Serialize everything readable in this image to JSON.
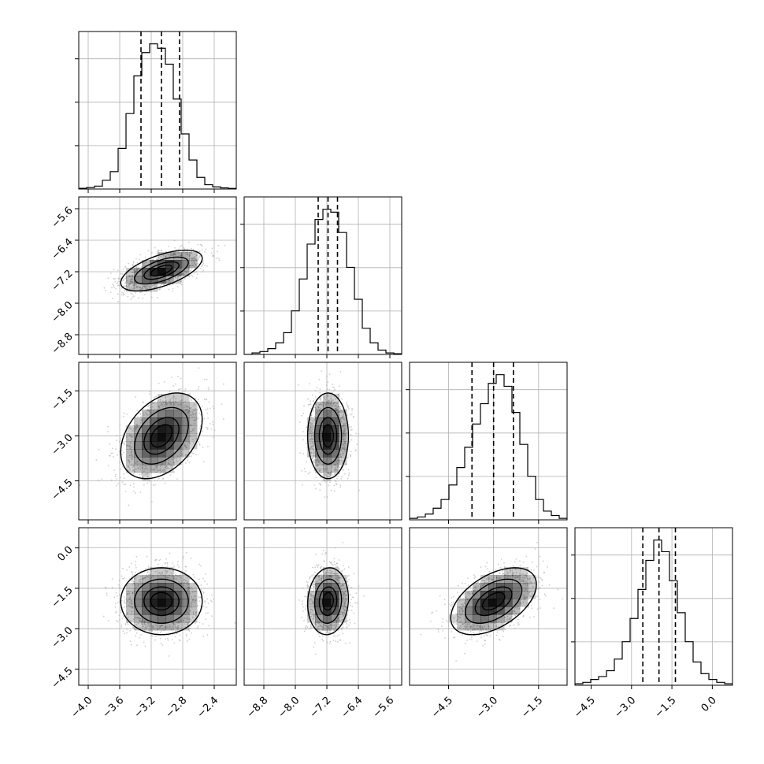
{
  "chart_data": {
    "type": "corner",
    "parameters": 4,
    "axis_ticks": [
      {
        "ticks": [
          -4.0,
          -3.6,
          -3.2,
          -2.8,
          -2.4
        ],
        "labels": [
          "−4.0",
          "−3.6",
          "−3.2",
          "−2.8",
          "−2.4"
        ],
        "range": [
          -4.12,
          -2.12
        ]
      },
      {
        "ticks": [
          -8.8,
          -8.0,
          -7.2,
          -6.4,
          -5.6
        ],
        "labels": [
          "−8.8",
          "−8.0",
          "−7.2",
          "−6.4",
          "−5.6"
        ],
        "range": [
          -9.3,
          -5.3
        ]
      },
      {
        "ticks": [
          -4.5,
          -3.0,
          -1.5
        ],
        "labels": [
          "−4.5",
          "−3.0",
          "−1.5"
        ],
        "range": [
          -5.8,
          -0.55
        ]
      },
      {
        "ticks": [
          -4.5,
          -3.0,
          -1.5,
          0.0
        ],
        "labels": [
          "−4.5",
          "−3.0",
          "−1.5",
          "0.0"
        ],
        "range": [
          -5.1,
          0.75
        ]
      }
    ],
    "marginals": [
      {
        "param": 0,
        "median": -3.07,
        "q16": -3.33,
        "q84": -2.84,
        "peak": 1.0,
        "edges": [
          -4.12,
          -4.02,
          -3.92,
          -3.82,
          -3.72,
          -3.62,
          -3.52,
          -3.42,
          -3.32,
          -3.22,
          -3.12,
          -3.02,
          -2.92,
          -2.82,
          -2.72,
          -2.62,
          -2.52,
          -2.42,
          -2.32,
          -2.22,
          -2.12
        ],
        "values": [
          0.005,
          0.01,
          0.02,
          0.06,
          0.12,
          0.28,
          0.52,
          0.78,
          0.94,
          1.0,
          0.97,
          0.86,
          0.62,
          0.38,
          0.2,
          0.08,
          0.03,
          0.015,
          0.008,
          0.004
        ]
      },
      {
        "param": 1,
        "median": -7.17,
        "q16": -7.42,
        "q84": -6.93,
        "peak": 1.0,
        "edges": [
          -9.3,
          -9.1,
          -8.9,
          -8.7,
          -8.5,
          -8.3,
          -8.1,
          -7.9,
          -7.7,
          -7.5,
          -7.3,
          -7.1,
          -6.9,
          -6.7,
          -6.5,
          -6.3,
          -6.1,
          -5.9,
          -5.7,
          -5.5,
          -5.3
        ],
        "values": [
          0.0,
          0.01,
          0.02,
          0.04,
          0.08,
          0.15,
          0.3,
          0.52,
          0.76,
          0.93,
          1.0,
          0.98,
          0.84,
          0.6,
          0.38,
          0.18,
          0.08,
          0.03,
          0.01,
          0.005
        ]
      },
      {
        "param": 2,
        "median": -3.0,
        "q16": -3.72,
        "q84": -2.34,
        "peak": 1.0,
        "edges": [
          -5.8,
          -5.5375,
          -5.275,
          -5.0125,
          -4.75,
          -4.4875,
          -4.225,
          -3.9625,
          -3.7,
          -3.4375,
          -3.175,
          -2.9125,
          -2.65,
          -2.3875,
          -2.125,
          -1.8625,
          -1.6,
          -1.3375,
          -1.075,
          -0.8125,
          -0.55
        ],
        "values": [
          0.01,
          0.02,
          0.04,
          0.08,
          0.14,
          0.24,
          0.36,
          0.5,
          0.66,
          0.8,
          0.94,
          1.0,
          0.92,
          0.74,
          0.52,
          0.3,
          0.14,
          0.06,
          0.03,
          0.01
        ]
      },
      {
        "param": 3,
        "median": -1.98,
        "q16": -2.58,
        "q84": -1.37,
        "peak": 1.0,
        "edges": [
          -5.1,
          -4.8075,
          -4.515,
          -4.2225,
          -3.93,
          -3.6375,
          -3.345,
          -3.0525,
          -2.76,
          -2.4675,
          -2.175,
          -1.8825,
          -1.59,
          -1.2975,
          -1.005,
          -0.7125,
          -0.42,
          -0.1275,
          0.165,
          0.4575,
          0.75
        ],
        "values": [
          0.01,
          0.02,
          0.04,
          0.06,
          0.1,
          0.18,
          0.3,
          0.46,
          0.66,
          0.86,
          1.0,
          0.92,
          0.72,
          0.5,
          0.3,
          0.16,
          0.08,
          0.04,
          0.02,
          0.01
        ]
      }
    ],
    "joint": {
      "means": [
        -3.07,
        -7.17,
        -3.0,
        -1.98
      ],
      "sigmas": [
        0.25,
        0.25,
        0.69,
        0.6
      ],
      "correlations": [
        [
          1.0,
          0.6,
          0.38,
          0.0
        ],
        [
          0.6,
          1.0,
          0.0,
          0.08
        ],
        [
          0.38,
          0.0,
          1.0,
          0.5
        ],
        [
          0.0,
          0.08,
          0.5,
          1.0
        ]
      ],
      "contour_levels_sigma": [
        0.5,
        1.0,
        1.5,
        2.0
      ],
      "scatter_color": "#a6a6a6",
      "density_color": "#000000"
    }
  }
}
